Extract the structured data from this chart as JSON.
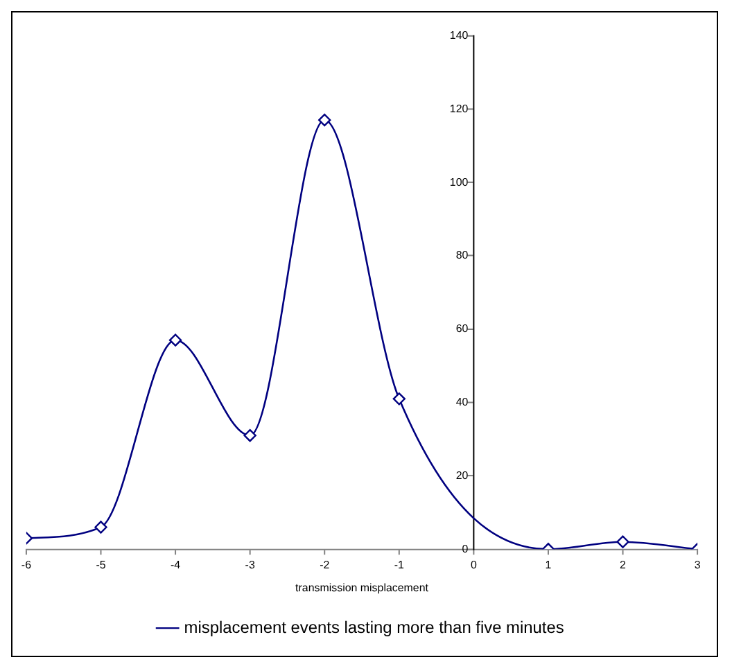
{
  "chart_data": {
    "type": "line",
    "xlabel": "transmission misplacement",
    "x": [
      -6,
      -5,
      -4,
      -3,
      -2,
      -1,
      1,
      2,
      3
    ],
    "series": [
      {
        "name": "misplacement events lasting more than five minutes",
        "color": "#000080",
        "values": [
          3,
          6,
          57,
          31,
          117,
          41,
          0,
          2,
          0
        ]
      }
    ],
    "xlim": [
      -6,
      3
    ],
    "xticks": [
      -6,
      -5,
      -4,
      -3,
      -2,
      -1,
      0,
      1,
      2,
      3
    ],
    "ylim": [
      0,
      140
    ],
    "yticks": [
      0,
      20,
      40,
      60,
      80,
      100,
      120,
      140
    ],
    "grid": false,
    "legend": "bottom",
    "marker": "diamond",
    "line_style": "solid"
  }
}
